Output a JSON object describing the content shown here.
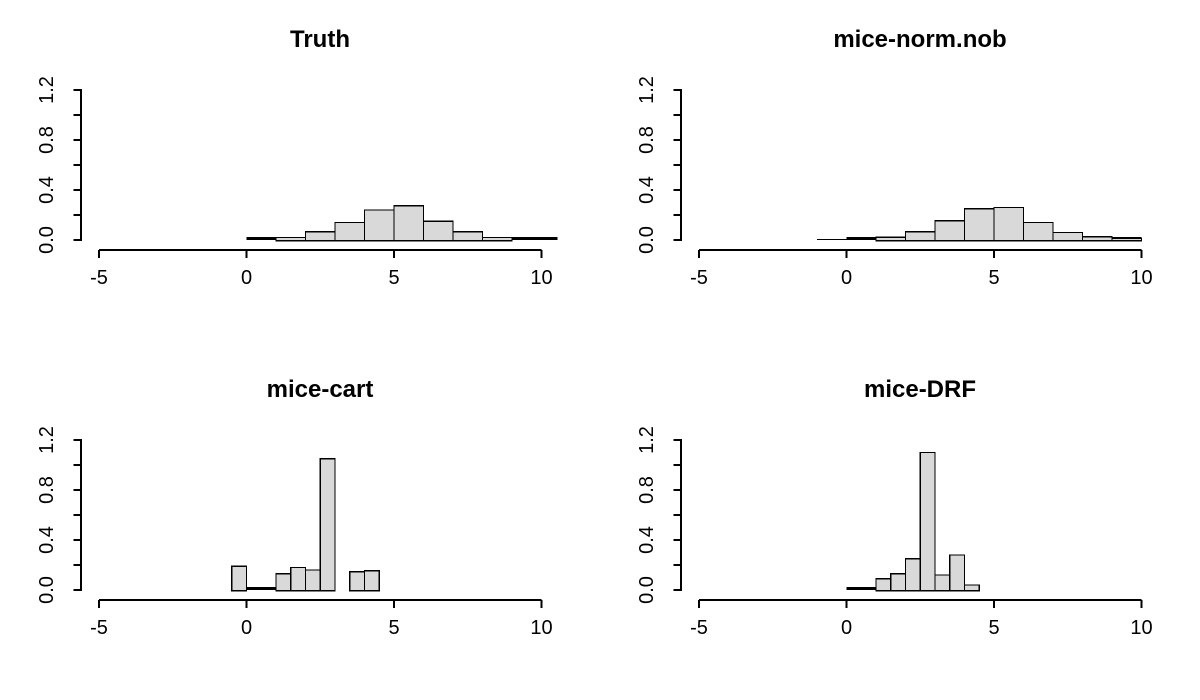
{
  "figure": {
    "background": "#ffffff",
    "bar_fill": "#d9d9d9",
    "bar_border": "#000000",
    "axis_color": "#000000",
    "text_color": "#000000"
  },
  "axes": {
    "xlim": [
      -5,
      10
    ],
    "ylim": [
      0,
      1.2
    ],
    "x_tick_values": [
      -5,
      0,
      5,
      10
    ],
    "x_tick_labels": [
      "-5",
      "0",
      "5",
      "10"
    ],
    "y_minor_tick_step": 0.2,
    "y_label_values": [
      0,
      0.4,
      0.8,
      1.2
    ],
    "y_tick_labels": [
      "0.0",
      "0.4",
      "0.8",
      "1.2"
    ]
  },
  "chart_data": [
    {
      "type": "bar",
      "chart_kind": "histogram-density",
      "title": "Truth",
      "grid_position": {
        "row": 0,
        "col": 0
      },
      "xlabel": "",
      "ylabel": "",
      "xlim": [
        -5,
        10
      ],
      "ylim": [
        0,
        1.2
      ],
      "bin_width": 1,
      "bars": [
        {
          "x0": 1,
          "x1": 2,
          "density": 0.02
        },
        {
          "x0": 2,
          "x1": 3,
          "density": 0.065
        },
        {
          "x0": 3,
          "x1": 4,
          "density": 0.14
        },
        {
          "x0": 4,
          "x1": 5,
          "density": 0.24
        },
        {
          "x0": 5,
          "x1": 6,
          "density": 0.275
        },
        {
          "x0": 6,
          "x1": 7,
          "density": 0.15
        },
        {
          "x0": 7,
          "x1": 8,
          "density": 0.065
        },
        {
          "x0": 8,
          "x1": 9,
          "density": 0.02
        }
      ],
      "near_zero_segments": [
        {
          "from": 0,
          "to": 10.55,
          "weight": "thick"
        }
      ]
    },
    {
      "type": "bar",
      "chart_kind": "histogram-density",
      "title": "mice-norm.nob",
      "grid_position": {
        "row": 0,
        "col": 1
      },
      "xlabel": "",
      "ylabel": "",
      "xlim": [
        -5,
        10
      ],
      "ylim": [
        0,
        1.2
      ],
      "bin_width": 1,
      "bars": [
        {
          "x0": 1,
          "x1": 2,
          "density": 0.022
        },
        {
          "x0": 2,
          "x1": 3,
          "density": 0.065
        },
        {
          "x0": 3,
          "x1": 4,
          "density": 0.155
        },
        {
          "x0": 4,
          "x1": 5,
          "density": 0.25
        },
        {
          "x0": 5,
          "x1": 6,
          "density": 0.26
        },
        {
          "x0": 6,
          "x1": 7,
          "density": 0.14
        },
        {
          "x0": 7,
          "x1": 8,
          "density": 0.06
        },
        {
          "x0": 8,
          "x1": 9,
          "density": 0.025
        },
        {
          "x0": 9,
          "x1": 10,
          "density": 0.012
        }
      ],
      "near_zero_segments": [
        {
          "from": -1,
          "to": 0,
          "weight": "thin"
        },
        {
          "from": 0,
          "to": 10,
          "weight": "thick"
        }
      ]
    },
    {
      "type": "bar",
      "chart_kind": "histogram-density",
      "title": "mice-cart",
      "grid_position": {
        "row": 1,
        "col": 0
      },
      "xlabel": "",
      "ylabel": "",
      "xlim": [
        -5,
        10
      ],
      "ylim": [
        0,
        1.2
      ],
      "bin_width": 0.5,
      "bars": [
        {
          "x0": -0.5,
          "x1": 0,
          "density": 0.19
        },
        {
          "x0": 1,
          "x1": 1.5,
          "density": 0.13
        },
        {
          "x0": 1.5,
          "x1": 2,
          "density": 0.18
        },
        {
          "x0": 2,
          "x1": 2.5,
          "density": 0.16
        },
        {
          "x0": 2.5,
          "x1": 3,
          "density": 1.05
        },
        {
          "x0": 3.5,
          "x1": 4,
          "density": 0.145
        },
        {
          "x0": 4,
          "x1": 4.5,
          "density": 0.155
        }
      ],
      "near_zero_segments": [
        {
          "from": 0,
          "to": 1.05,
          "weight": "thick"
        }
      ]
    },
    {
      "type": "bar",
      "chart_kind": "histogram-density",
      "title": "mice-DRF",
      "grid_position": {
        "row": 1,
        "col": 1
      },
      "xlabel": "",
      "ylabel": "",
      "xlim": [
        -5,
        10
      ],
      "ylim": [
        0,
        1.2
      ],
      "bin_width": 0.5,
      "bars": [
        {
          "x0": 1,
          "x1": 1.5,
          "density": 0.09
        },
        {
          "x0": 1.5,
          "x1": 2,
          "density": 0.13
        },
        {
          "x0": 2,
          "x1": 2.5,
          "density": 0.25
        },
        {
          "x0": 2.5,
          "x1": 3,
          "density": 1.1
        },
        {
          "x0": 3,
          "x1": 3.5,
          "density": 0.12
        },
        {
          "x0": 3.5,
          "x1": 4,
          "density": 0.28
        },
        {
          "x0": 4,
          "x1": 4.5,
          "density": 0.04
        }
      ],
      "near_zero_segments": [
        {
          "from": 0,
          "to": 1,
          "weight": "thick"
        }
      ]
    }
  ]
}
